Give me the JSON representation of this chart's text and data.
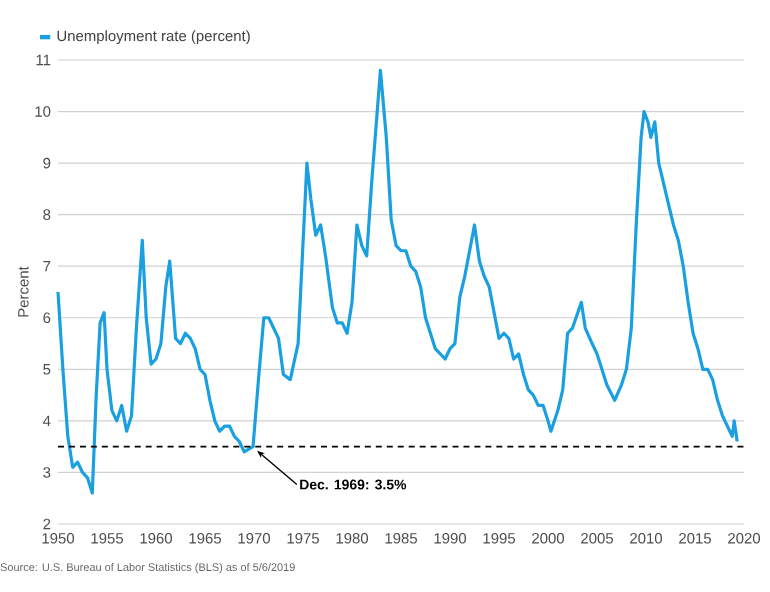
{
  "chart_data": {
    "type": "line",
    "ylabel": "Percent",
    "x": [
      1950.0,
      1950.5,
      1951.0,
      1951.5,
      1952.0,
      1952.5,
      1953.0,
      1953.5,
      1953.9,
      1954.3,
      1954.7,
      1955.0,
      1955.5,
      1956.0,
      1956.5,
      1957.0,
      1957.5,
      1958.0,
      1958.6,
      1959.0,
      1959.5,
      1960.0,
      1960.5,
      1961.0,
      1961.4,
      1962.0,
      1962.5,
      1963.0,
      1963.5,
      1964.0,
      1964.5,
      1965.0,
      1965.5,
      1966.0,
      1966.5,
      1967.0,
      1967.5,
      1968.0,
      1968.5,
      1969.0,
      1969.9,
      1970.5,
      1971.0,
      1971.5,
      1972.0,
      1972.5,
      1973.0,
      1973.7,
      1974.5,
      1975.4,
      1975.8,
      1976.3,
      1976.8,
      1977.3,
      1978.0,
      1978.5,
      1979.0,
      1979.5,
      1980.0,
      1980.5,
      1981.0,
      1981.5,
      1982.0,
      1982.9,
      1983.5,
      1984.0,
      1984.5,
      1985.0,
      1985.5,
      1986.0,
      1986.5,
      1987.0,
      1987.5,
      1988.0,
      1988.5,
      1989.0,
      1989.5,
      1990.0,
      1990.5,
      1991.0,
      1991.5,
      1992.5,
      1993.0,
      1993.5,
      1994.0,
      1994.5,
      1995.0,
      1995.5,
      1996.0,
      1996.5,
      1997.0,
      1997.5,
      1998.0,
      1998.5,
      1999.0,
      1999.5,
      2000.0,
      2000.3,
      2001.0,
      2001.5,
      2002.0,
      2002.5,
      2003.4,
      2003.8,
      2004.5,
      2005.0,
      2005.5,
      2006.0,
      2006.8,
      2007.5,
      2008.0,
      2008.5,
      2009.0,
      2009.5,
      2009.8,
      2010.2,
      2010.5,
      2010.9,
      2011.3,
      2011.8,
      2012.3,
      2012.8,
      2013.3,
      2013.8,
      2014.3,
      2014.8,
      2015.3,
      2015.8,
      2016.3,
      2016.8,
      2017.3,
      2017.8,
      2018.3,
      2018.8,
      2019.0,
      2019.3
    ],
    "series": [
      {
        "name": "Unemployment rate (percent)",
        "color": "#1a9fe0",
        "values": [
          6.5,
          5.0,
          3.7,
          3.1,
          3.2,
          3.0,
          2.9,
          2.6,
          4.5,
          5.9,
          6.1,
          5.0,
          4.2,
          4.0,
          4.3,
          3.8,
          4.1,
          5.8,
          7.5,
          6.0,
          5.1,
          5.2,
          5.5,
          6.6,
          7.1,
          5.6,
          5.5,
          5.7,
          5.6,
          5.4,
          5.0,
          4.9,
          4.4,
          4.0,
          3.8,
          3.9,
          3.9,
          3.7,
          3.6,
          3.4,
          3.5,
          4.9,
          6.0,
          6.0,
          5.8,
          5.6,
          4.9,
          4.8,
          5.5,
          9.0,
          8.3,
          7.6,
          7.8,
          7.2,
          6.2,
          5.9,
          5.9,
          5.7,
          6.3,
          7.8,
          7.4,
          7.2,
          8.6,
          10.8,
          9.5,
          7.9,
          7.4,
          7.3,
          7.3,
          7.0,
          6.9,
          6.6,
          6.0,
          5.7,
          5.4,
          5.3,
          5.2,
          5.4,
          5.5,
          6.4,
          6.8,
          7.8,
          7.1,
          6.8,
          6.6,
          6.1,
          5.6,
          5.7,
          5.6,
          5.2,
          5.3,
          4.9,
          4.6,
          4.5,
          4.3,
          4.3,
          4.0,
          3.8,
          4.2,
          4.6,
          5.7,
          5.8,
          6.3,
          5.8,
          5.5,
          5.3,
          5.0,
          4.7,
          4.4,
          4.7,
          5.0,
          5.8,
          7.8,
          9.5,
          10.0,
          9.8,
          9.5,
          9.8,
          9.0,
          8.6,
          8.2,
          7.8,
          7.5,
          7.0,
          6.3,
          5.7,
          5.4,
          5.0,
          5.0,
          4.8,
          4.4,
          4.1,
          3.9,
          3.7,
          4.0,
          3.6
        ]
      }
    ],
    "xlim": [
      1950,
      2020
    ],
    "xticks": [
      1950,
      1955,
      1960,
      1965,
      1970,
      1975,
      1980,
      1985,
      1990,
      1995,
      2000,
      2005,
      2010,
      2015,
      2020
    ],
    "ylim": [
      2,
      11
    ],
    "yticks": [
      2,
      3,
      4,
      5,
      6,
      7,
      8,
      9,
      10,
      11
    ],
    "grid": "y",
    "legend": "top left",
    "marker": "none",
    "line_style": "solid",
    "ref_lines": [
      {
        "axis": "y",
        "value": 3.5,
        "color": "#000000",
        "line_style": "dashed"
      }
    ],
    "annotations": [
      {
        "text": "**Dec. 1969: 3.5%**",
        "x": 1969.9,
        "y": 3.5
      },
      "Source: U.S. Bureau of Labor Statistics (BLS) as of 5/6/2019"
    ]
  }
}
